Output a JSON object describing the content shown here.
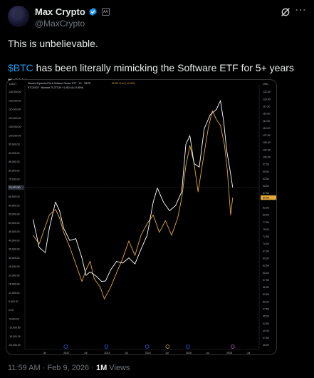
{
  "header": {
    "author_name": "Max Crypto",
    "handle": "@MaxCrypto",
    "affiliation_badge": "AA"
  },
  "tweet": {
    "line1": "This is unbelievable.",
    "cashtag": "$BTC",
    "line2_rest": " has been literally mimicking the Software ETF for 5+ years now."
  },
  "chart_header": {
    "corner_left": "USDT",
    "corner_right": "USD",
    "legend1": "iShares Expanded Tech-Software Sector ETF · 1D · CBOE",
    "legend1_values": "85.85  +3.42 (+4.00%)",
    "legend2": "BTCUSDT · Binance  70,372.50  +1,482.44 (+1.86%)",
    "price_tag_left": "70,372.50",
    "price_tag_right": "85.85"
  },
  "chart_data": {
    "type": "line",
    "x_ticks": [
      "Jul",
      "2022",
      "Jul",
      "2023",
      "Jul",
      "2024",
      "Jul",
      "2025",
      "Jul",
      "2026",
      "Jul"
    ],
    "left_axis": {
      "unit": "USDT",
      "ticks": [
        "125,000.00",
        "120,000.00",
        "115,000.00",
        "110,000.00",
        "105,000.00",
        "100,000.00",
        "95,000.00",
        "90,000.00",
        "85,000.00",
        "80,000.00",
        "75,000.00",
        "65,000.00",
        "60,000.00",
        "55,000.00",
        "50,000.00",
        "45,000.00",
        "40,000.00",
        "35,000.00",
        "30,000.00",
        "25,000.00",
        "20,000.00",
        "15,000.00",
        "10,000.00",
        "5,000.00",
        "0.00",
        "-5,000.00",
        "-10,000.00",
        "-15,000.00",
        "-20,000.00"
      ],
      "ylim": [
        -20000,
        125000
      ]
    },
    "right_axis": {
      "unit": "USD",
      "ticks": [
        "122.50",
        "120.00",
        "117.50",
        "115.00",
        "112.50",
        "110.00",
        "107.50",
        "105.00",
        "102.50",
        "100.00",
        "97.50",
        "95.00",
        "92.50",
        "90.00",
        "87.50",
        "82.50",
        "80.00",
        "77.50",
        "75.00",
        "72.50",
        "70.00",
        "67.50",
        "65.00",
        "62.50",
        "60.00",
        "57.50",
        "55.00",
        "52.50",
        "50.00",
        "47.50",
        "45.00",
        "42.50",
        "40.00",
        "37.50",
        "35.00"
      ],
      "ylim": [
        35,
        122.5
      ]
    },
    "series": [
      {
        "name": "iShares Expanded Tech-Software Sector ETF",
        "color": "#e0a63a",
        "axis": "right",
        "points": [
          [
            2021.2,
            73
          ],
          [
            2021.35,
            70
          ],
          [
            2021.5,
            76
          ],
          [
            2021.6,
            80
          ],
          [
            2021.75,
            82
          ],
          [
            2021.85,
            79
          ],
          [
            2021.95,
            74
          ],
          [
            2022.1,
            69
          ],
          [
            2022.25,
            63
          ],
          [
            2022.4,
            57
          ],
          [
            2022.5,
            61
          ],
          [
            2022.6,
            64
          ],
          [
            2022.7,
            58
          ],
          [
            2022.85,
            55
          ],
          [
            2022.95,
            51
          ],
          [
            2023.1,
            55
          ],
          [
            2023.25,
            60
          ],
          [
            2023.4,
            65
          ],
          [
            2023.55,
            71
          ],
          [
            2023.7,
            66
          ],
          [
            2023.85,
            73
          ],
          [
            2024.0,
            77
          ],
          [
            2024.15,
            80
          ],
          [
            2024.3,
            74
          ],
          [
            2024.45,
            78
          ],
          [
            2024.6,
            73
          ],
          [
            2024.75,
            79
          ],
          [
            2024.85,
            86
          ],
          [
            2024.95,
            97
          ],
          [
            2025.05,
            104
          ],
          [
            2025.15,
            98
          ],
          [
            2025.25,
            88
          ],
          [
            2025.35,
            97
          ],
          [
            2025.5,
            110
          ],
          [
            2025.6,
            116
          ],
          [
            2025.7,
            113
          ],
          [
            2025.8,
            111
          ],
          [
            2025.9,
            104
          ],
          [
            2025.97,
            95
          ],
          [
            2026.05,
            80
          ],
          [
            2026.1,
            86
          ]
        ]
      },
      {
        "name": "BTCUSDT",
        "color": "#ffffff",
        "axis": "left",
        "points": [
          [
            2021.2,
            52000
          ],
          [
            2021.35,
            36000
          ],
          [
            2021.5,
            33000
          ],
          [
            2021.6,
            47000
          ],
          [
            2021.75,
            62000
          ],
          [
            2021.85,
            57000
          ],
          [
            2021.95,
            47000
          ],
          [
            2022.1,
            40000
          ],
          [
            2022.25,
            41000
          ],
          [
            2022.4,
            30000
          ],
          [
            2022.5,
            20000
          ],
          [
            2022.6,
            22000
          ],
          [
            2022.75,
            19500
          ],
          [
            2022.88,
            16500
          ],
          [
            2022.98,
            16800
          ],
          [
            2023.1,
            23000
          ],
          [
            2023.25,
            28000
          ],
          [
            2023.4,
            27000
          ],
          [
            2023.55,
            30000
          ],
          [
            2023.7,
            26500
          ],
          [
            2023.85,
            35000
          ],
          [
            2024.0,
            43000
          ],
          [
            2024.15,
            62000
          ],
          [
            2024.25,
            70000
          ],
          [
            2024.4,
            62000
          ],
          [
            2024.55,
            57000
          ],
          [
            2024.7,
            60000
          ],
          [
            2024.85,
            68000
          ],
          [
            2024.95,
            95000
          ],
          [
            2025.05,
            100000
          ],
          [
            2025.15,
            84000
          ],
          [
            2025.28,
            82000
          ],
          [
            2025.4,
            104000
          ],
          [
            2025.55,
            112000
          ],
          [
            2025.7,
            115000
          ],
          [
            2025.8,
            120000
          ],
          [
            2025.88,
            108000
          ],
          [
            2025.95,
            92000
          ],
          [
            2026.05,
            78000
          ],
          [
            2026.1,
            70372
          ]
        ]
      }
    ]
  },
  "footer": {
    "time": "11:59 AM",
    "separator": " · ",
    "date": "Feb 9, 2026",
    "views_count": "1M",
    "views_label": " Views"
  },
  "colors": {
    "background": "#000000",
    "text": "#e7e9ea",
    "muted": "#71767b",
    "link": "#1d9bf0",
    "verified": "#1d9bf0",
    "etf_line": "#e0a63a",
    "btc_line": "#ffffff"
  },
  "icons": [
    "verified-badge-icon",
    "grok-icon",
    "more-options-icon",
    "tradingview-event-icon"
  ]
}
